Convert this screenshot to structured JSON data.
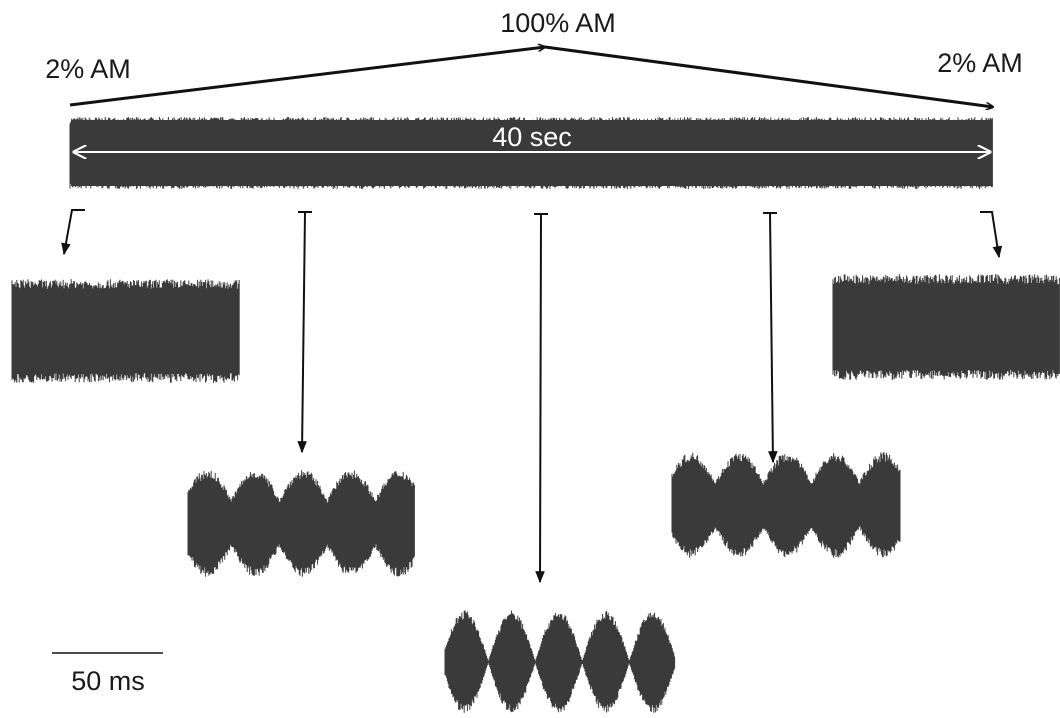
{
  "labels": {
    "start": "2% AM",
    "middle": "100% AM",
    "end": "2% AM",
    "duration": "40 sec",
    "scale": "50 ms"
  }
}
